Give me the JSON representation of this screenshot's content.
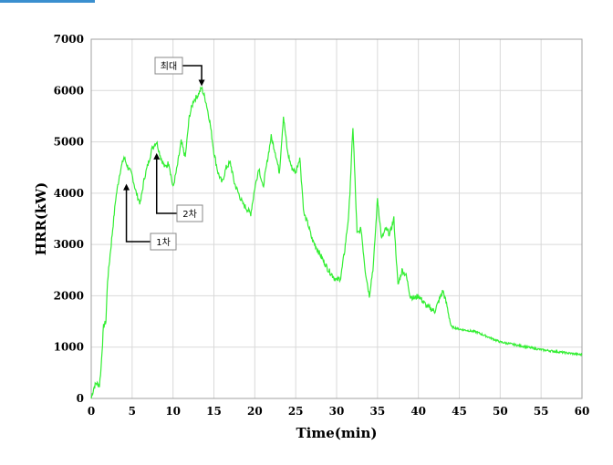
{
  "chart_data": {
    "type": "line",
    "xlabel": "Time(min)",
    "ylabel": "HRR(kW)",
    "xlim": [
      0,
      60
    ],
    "ylim": [
      0,
      7000
    ],
    "xticks": [
      0,
      5,
      10,
      15,
      20,
      25,
      30,
      35,
      40,
      45,
      50,
      55,
      60
    ],
    "yticks": [
      0,
      1000,
      2000,
      3000,
      4000,
      5000,
      6000,
      7000
    ],
    "grid": true,
    "series": [
      {
        "color": "#33ee33",
        "x": [
          0,
          0.3,
          0.6,
          1.0,
          1.2,
          1.5,
          1.8,
          2.0,
          2.5,
          3.0,
          3.5,
          4.0,
          4.5,
          5.0,
          5.5,
          6.0,
          6.5,
          7.0,
          7.5,
          8.0,
          8.5,
          9.0,
          9.5,
          10.0,
          10.5,
          11.0,
          11.5,
          12.0,
          12.5,
          13.0,
          13.5,
          14.0,
          14.5,
          15.0,
          15.5,
          16.0,
          16.5,
          17.0,
          17.5,
          18.0,
          18.5,
          19.0,
          19.5,
          20.0,
          20.5,
          21.0,
          21.5,
          22.0,
          22.5,
          23.0,
          23.5,
          24.0,
          24.5,
          25.0,
          25.5,
          26.0,
          26.5,
          27.0,
          28.0,
          29.0,
          30.0,
          30.5,
          31.0,
          31.5,
          32.0,
          32.5,
          33.0,
          33.5,
          34.0,
          34.5,
          35.0,
          35.5,
          36.0,
          36.5,
          37.0,
          37.5,
          38.0,
          38.5,
          39.0,
          39.5,
          40.0,
          41.0,
          42.0,
          43.0,
          43.5,
          44.0,
          45.0,
          47.0,
          50.0,
          55.0,
          60.0
        ],
        "y": [
          0,
          200,
          300,
          250,
          600,
          1400,
          1500,
          2300,
          3100,
          3900,
          4400,
          4700,
          4500,
          4350,
          4000,
          3800,
          4300,
          4600,
          4900,
          5000,
          4700,
          4500,
          4600,
          4100,
          4500,
          5000,
          4700,
          5500,
          5800,
          5900,
          6050,
          5800,
          5400,
          4800,
          4400,
          4200,
          4500,
          4600,
          4200,
          4000,
          3800,
          3700,
          3600,
          4100,
          4500,
          4100,
          4600,
          5100,
          4800,
          4400,
          5500,
          4800,
          4500,
          4400,
          4700,
          3600,
          3400,
          3100,
          2800,
          2500,
          2300,
          2350,
          2900,
          3600,
          5300,
          3200,
          3300,
          2500,
          2000,
          2600,
          3900,
          3100,
          3300,
          3200,
          3500,
          2200,
          2500,
          2400,
          2000,
          1950,
          2000,
          1800,
          1700,
          2100,
          1800,
          1400,
          1350,
          1300,
          1100,
          950,
          850
        ]
      }
    ],
    "annotations": [
      {
        "label": "최대",
        "x": 13.5,
        "y": 6050
      },
      {
        "label": "2차",
        "x": 8.0,
        "y": 4800
      },
      {
        "label": "1차",
        "x": 4.3,
        "y": 4200
      }
    ]
  }
}
